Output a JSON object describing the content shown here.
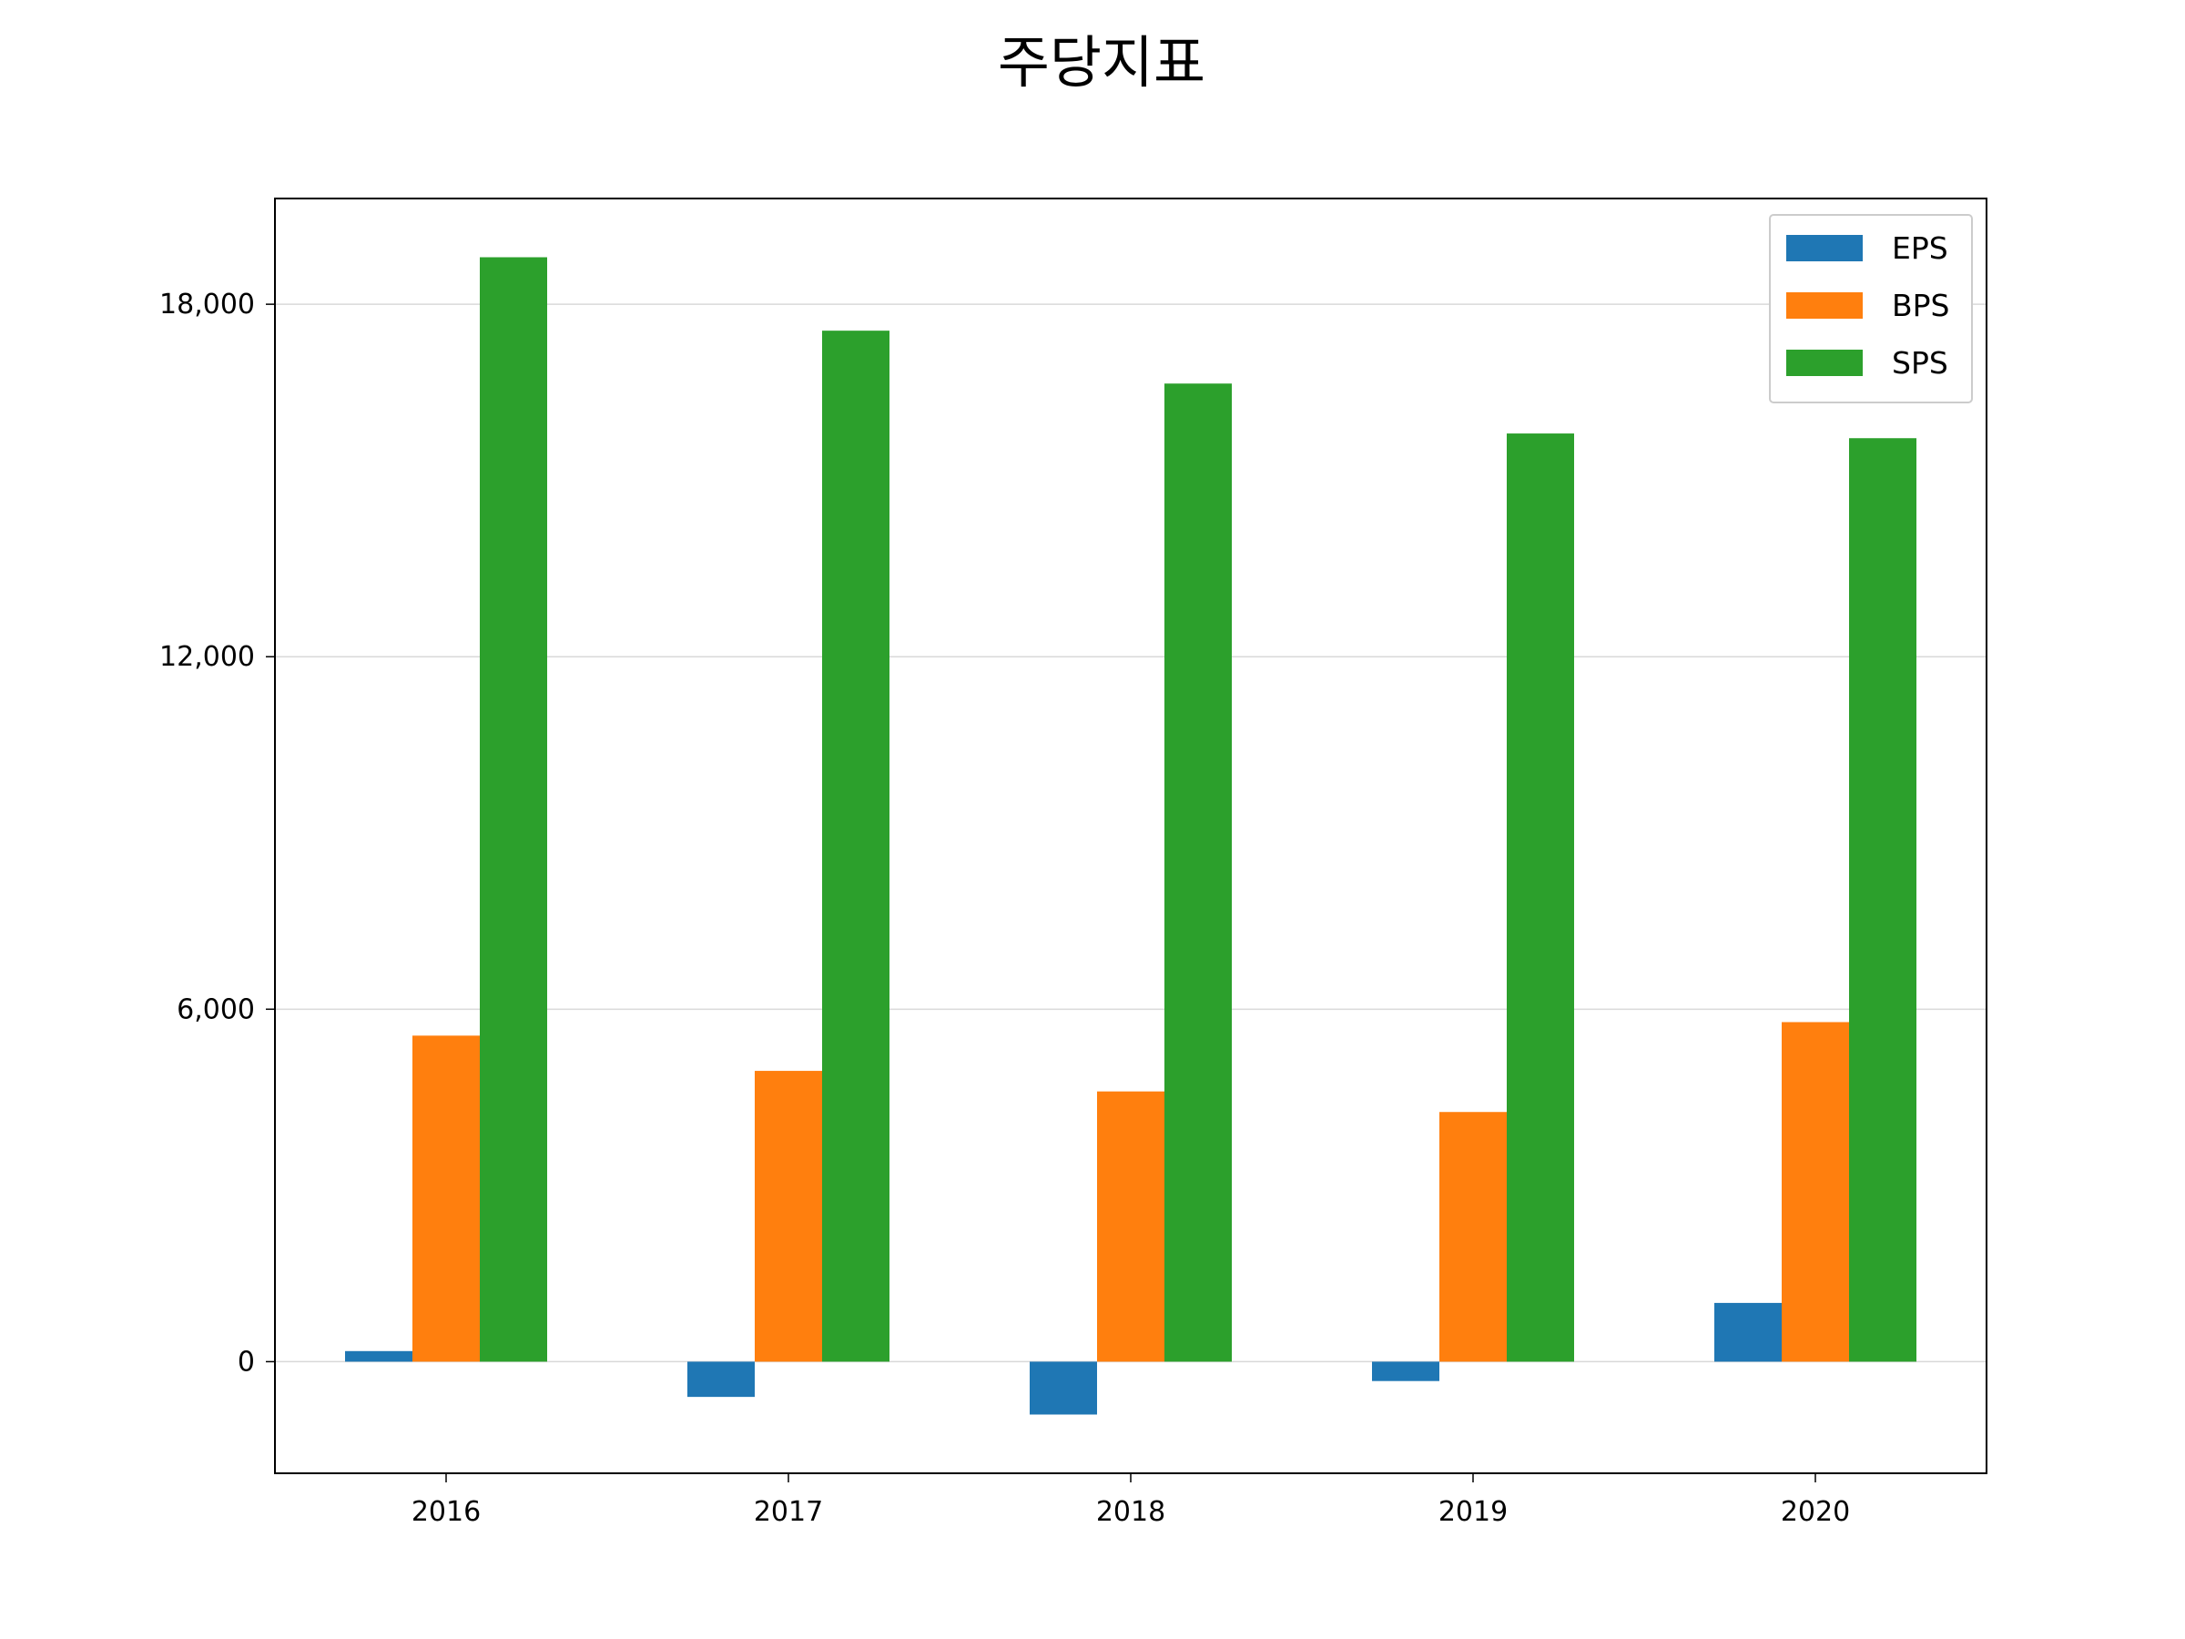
{
  "chart_data": {
    "type": "bar",
    "title": "주당지표",
    "xlabel": "",
    "ylabel": "",
    "categories": [
      "2016",
      "2017",
      "2018",
      "2019",
      "2020"
    ],
    "series": [
      {
        "name": "EPS",
        "color": "#1f77b4",
        "values": [
          180,
          -600,
          -900,
          -330,
          1000
        ]
      },
      {
        "name": "BPS",
        "color": "#ff7f0e",
        "values": [
          5550,
          4950,
          4600,
          4250,
          5780
        ]
      },
      {
        "name": "SPS",
        "color": "#2ca02c",
        "values": [
          18800,
          17550,
          16650,
          15800,
          15720
        ]
      }
    ],
    "ylim": [
      -1900,
      19800
    ],
    "yticks": [
      0,
      6000,
      12000,
      18000
    ],
    "ytick_labels": [
      "0",
      "6,000",
      "12,000",
      "18,000"
    ],
    "grid": "horizontal",
    "legend_position": "top-right"
  }
}
